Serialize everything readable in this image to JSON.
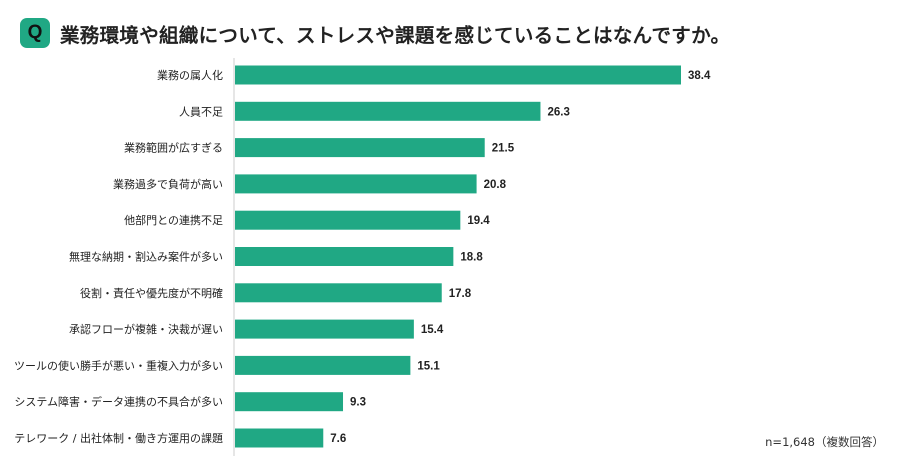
{
  "question_badge": "Q",
  "title": "業務環境や組織について、ストレスや課題を感じていることはなんですか。",
  "note": "n=1,648（複数回答）",
  "colors": {
    "bar": "#20a884",
    "badge": "#20a884",
    "axis": "#cccccc"
  },
  "chart_data": {
    "type": "bar",
    "orientation": "horizontal",
    "title": "業務環境や組織について、ストレスや課題を感じていることはなんですか。",
    "categories": [
      "業務の属人化",
      "人員不足",
      "業務範囲が広すぎる",
      "業務過多で負荷が高い",
      "他部門との連携不足",
      "無理な納期・割込み案件が多い",
      "役割・責任や優先度が不明確",
      "承認フローが複雑・決裁が遅い",
      "ツールの使い勝手が悪い・重複入力が多い",
      "システム障害・データ連携の不具合が多い",
      "テレワーク / 出社体制・働き方運用の課題"
    ],
    "values": [
      38.4,
      26.3,
      21.5,
      20.8,
      19.4,
      18.8,
      17.8,
      15.4,
      15.1,
      9.3,
      7.6
    ],
    "xlim": [
      0,
      42
    ],
    "data_labels": true,
    "grid": false
  }
}
